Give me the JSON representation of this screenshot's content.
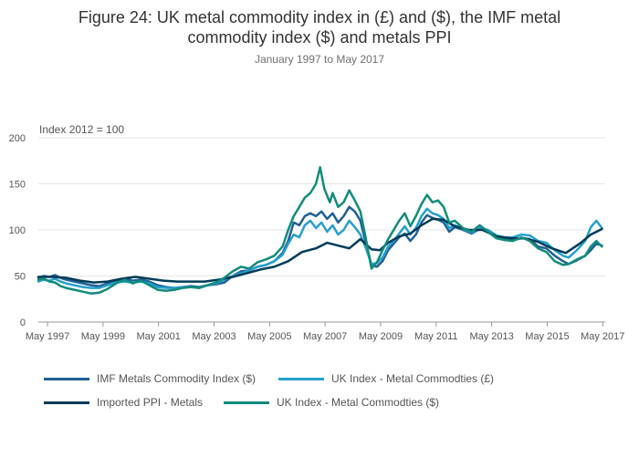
{
  "chart_data": {
    "type": "line",
    "title_line1": "Figure 24: UK metal commodity index in (£) and ($), the IMF metal",
    "title_line2": "commodity index ($) and metals PPI",
    "subtitle": "January 1997 to May 2017",
    "ylabel": "Index 2012 = 100",
    "ylim": [
      0,
      200
    ],
    "yticks": [
      0,
      50,
      100,
      150,
      200
    ],
    "xlim": [
      1997.0,
      2017.42
    ],
    "xticks": [
      {
        "value": 1997.33,
        "label": "May 1997"
      },
      {
        "value": 1999.33,
        "label": "May 1999"
      },
      {
        "value": 2001.33,
        "label": "May 2001"
      },
      {
        "value": 2003.33,
        "label": "May 2003"
      },
      {
        "value": 2005.33,
        "label": "May 2005"
      },
      {
        "value": 2007.33,
        "label": "May 2007"
      },
      {
        "value": 2009.33,
        "label": "May 2009"
      },
      {
        "value": 2011.33,
        "label": "May 2011"
      },
      {
        "value": 2013.33,
        "label": "May 2013"
      },
      {
        "value": 2015.33,
        "label": "May 2015"
      },
      {
        "value": 2017.33,
        "label": "May 2017"
      }
    ],
    "series": [
      {
        "name": "IMF Metals Commodity Index ($)",
        "color": "#206095",
        "points": [
          [
            1997.0,
            48
          ],
          [
            1997.2,
            50
          ],
          [
            1997.4,
            49
          ],
          [
            1997.6,
            51
          ],
          [
            1997.8,
            48
          ],
          [
            1998.0,
            46
          ],
          [
            1998.3,
            44
          ],
          [
            1998.6,
            42
          ],
          [
            1998.9,
            40
          ],
          [
            1999.2,
            39
          ],
          [
            1999.5,
            42
          ],
          [
            1999.8,
            45
          ],
          [
            2000.1,
            47
          ],
          [
            2000.4,
            45
          ],
          [
            2000.7,
            46
          ],
          [
            2001.0,
            44
          ],
          [
            2001.3,
            40
          ],
          [
            2001.6,
            38
          ],
          [
            2001.9,
            37
          ],
          [
            2002.2,
            38
          ],
          [
            2002.5,
            39
          ],
          [
            2002.8,
            38
          ],
          [
            2003.1,
            40
          ],
          [
            2003.4,
            41
          ],
          [
            2003.7,
            43
          ],
          [
            2004.0,
            50
          ],
          [
            2004.3,
            55
          ],
          [
            2004.6,
            56
          ],
          [
            2004.9,
            60
          ],
          [
            2005.2,
            62
          ],
          [
            2005.5,
            66
          ],
          [
            2005.8,
            75
          ],
          [
            2006.0,
            88
          ],
          [
            2006.2,
            108
          ],
          [
            2006.4,
            105
          ],
          [
            2006.6,
            115
          ],
          [
            2006.8,
            118
          ],
          [
            2007.0,
            115
          ],
          [
            2007.2,
            120
          ],
          [
            2007.4,
            112
          ],
          [
            2007.6,
            118
          ],
          [
            2007.8,
            108
          ],
          [
            2008.0,
            115
          ],
          [
            2008.2,
            125
          ],
          [
            2008.4,
            120
          ],
          [
            2008.6,
            110
          ],
          [
            2008.8,
            85
          ],
          [
            2009.0,
            62
          ],
          [
            2009.2,
            60
          ],
          [
            2009.4,
            66
          ],
          [
            2009.6,
            78
          ],
          [
            2009.8,
            85
          ],
          [
            2010.0,
            92
          ],
          [
            2010.2,
            96
          ],
          [
            2010.4,
            88
          ],
          [
            2010.6,
            95
          ],
          [
            2010.8,
            108
          ],
          [
            2011.0,
            116
          ],
          [
            2011.2,
            113
          ],
          [
            2011.4,
            111
          ],
          [
            2011.6,
            108
          ],
          [
            2011.8,
            98
          ],
          [
            2012.0,
            103
          ],
          [
            2012.3,
            100
          ],
          [
            2012.6,
            96
          ],
          [
            2012.9,
            101
          ],
          [
            2013.2,
            98
          ],
          [
            2013.5,
            91
          ],
          [
            2013.8,
            90
          ],
          [
            2014.1,
            89
          ],
          [
            2014.4,
            91
          ],
          [
            2014.7,
            90
          ],
          [
            2015.0,
            82
          ],
          [
            2015.3,
            80
          ],
          [
            2015.6,
            72
          ],
          [
            2015.9,
            66
          ],
          [
            2016.1,
            63
          ],
          [
            2016.4,
            67
          ],
          [
            2016.7,
            72
          ],
          [
            2016.9,
            78
          ],
          [
            2017.1,
            85
          ],
          [
            2017.3,
            83
          ]
        ]
      },
      {
        "name": "UK Index - Metal Commodties (£)",
        "color": "#27a0cc",
        "points": [
          [
            1997.0,
            44
          ],
          [
            1997.2,
            46
          ],
          [
            1997.4,
            45
          ],
          [
            1997.6,
            47
          ],
          [
            1997.8,
            44
          ],
          [
            1998.0,
            42
          ],
          [
            1998.3,
            40
          ],
          [
            1998.6,
            38
          ],
          [
            1998.9,
            37
          ],
          [
            1999.2,
            37
          ],
          [
            1999.5,
            40
          ],
          [
            1999.8,
            43
          ],
          [
            2000.1,
            44
          ],
          [
            2000.4,
            43
          ],
          [
            2000.7,
            44
          ],
          [
            2001.0,
            42
          ],
          [
            2001.3,
            38
          ],
          [
            2001.6,
            37
          ],
          [
            2001.9,
            37
          ],
          [
            2002.2,
            38
          ],
          [
            2002.5,
            38
          ],
          [
            2002.8,
            37
          ],
          [
            2003.1,
            40
          ],
          [
            2003.4,
            42
          ],
          [
            2003.7,
            46
          ],
          [
            2004.0,
            50
          ],
          [
            2004.3,
            53
          ],
          [
            2004.6,
            56
          ],
          [
            2004.9,
            60
          ],
          [
            2005.2,
            62
          ],
          [
            2005.5,
            66
          ],
          [
            2005.8,
            73
          ],
          [
            2006.0,
            85
          ],
          [
            2006.2,
            95
          ],
          [
            2006.4,
            92
          ],
          [
            2006.6,
            105
          ],
          [
            2006.8,
            110
          ],
          [
            2007.0,
            102
          ],
          [
            2007.2,
            108
          ],
          [
            2007.4,
            98
          ],
          [
            2007.6,
            105
          ],
          [
            2007.8,
            95
          ],
          [
            2008.0,
            100
          ],
          [
            2008.2,
            110
          ],
          [
            2008.4,
            103
          ],
          [
            2008.6,
            95
          ],
          [
            2008.8,
            80
          ],
          [
            2009.0,
            63
          ],
          [
            2009.2,
            64
          ],
          [
            2009.4,
            70
          ],
          [
            2009.6,
            82
          ],
          [
            2009.8,
            88
          ],
          [
            2010.0,
            96
          ],
          [
            2010.2,
            104
          ],
          [
            2010.4,
            95
          ],
          [
            2010.6,
            102
          ],
          [
            2010.8,
            115
          ],
          [
            2011.0,
            123
          ],
          [
            2011.2,
            118
          ],
          [
            2011.4,
            116
          ],
          [
            2011.6,
            112
          ],
          [
            2011.8,
            102
          ],
          [
            2012.0,
            105
          ],
          [
            2012.3,
            101
          ],
          [
            2012.6,
            97
          ],
          [
            2012.9,
            102
          ],
          [
            2013.2,
            100
          ],
          [
            2013.5,
            94
          ],
          [
            2013.8,
            92
          ],
          [
            2014.1,
            92
          ],
          [
            2014.4,
            95
          ],
          [
            2014.7,
            94
          ],
          [
            2015.0,
            88
          ],
          [
            2015.3,
            86
          ],
          [
            2015.6,
            78
          ],
          [
            2015.9,
            72
          ],
          [
            2016.1,
            70
          ],
          [
            2016.4,
            78
          ],
          [
            2016.7,
            88
          ],
          [
            2016.9,
            103
          ],
          [
            2017.1,
            110
          ],
          [
            2017.3,
            102
          ]
        ]
      },
      {
        "name": "Imported PPI - Metals",
        "color": "#003c57",
        "points": [
          [
            1997.0,
            49
          ],
          [
            1997.5,
            49
          ],
          [
            1998.0,
            48
          ],
          [
            1998.5,
            45
          ],
          [
            1999.0,
            43
          ],
          [
            1999.5,
            44
          ],
          [
            2000.0,
            47
          ],
          [
            2000.5,
            49
          ],
          [
            2001.0,
            47
          ],
          [
            2001.5,
            45
          ],
          [
            2002.0,
            44
          ],
          [
            2002.5,
            44
          ],
          [
            2003.0,
            44
          ],
          [
            2003.5,
            46
          ],
          [
            2004.0,
            49
          ],
          [
            2004.5,
            53
          ],
          [
            2005.0,
            57
          ],
          [
            2005.5,
            60
          ],
          [
            2006.0,
            66
          ],
          [
            2006.5,
            76
          ],
          [
            2007.0,
            80
          ],
          [
            2007.4,
            86
          ],
          [
            2007.8,
            83
          ],
          [
            2008.2,
            80
          ],
          [
            2008.6,
            90
          ],
          [
            2009.0,
            79
          ],
          [
            2009.3,
            78
          ],
          [
            2009.6,
            86
          ],
          [
            2010.0,
            93
          ],
          [
            2010.4,
            96
          ],
          [
            2010.8,
            105
          ],
          [
            2011.2,
            112
          ],
          [
            2011.6,
            111
          ],
          [
            2012.0,
            104
          ],
          [
            2012.5,
            100
          ],
          [
            2013.0,
            100
          ],
          [
            2013.5,
            93
          ],
          [
            2014.0,
            91
          ],
          [
            2014.5,
            91
          ],
          [
            2015.0,
            87
          ],
          [
            2015.5,
            80
          ],
          [
            2016.0,
            75
          ],
          [
            2016.5,
            85
          ],
          [
            2016.9,
            95
          ],
          [
            2017.3,
            101
          ]
        ]
      },
      {
        "name": "UK Index - Metal Commodties ($)",
        "color": "#118c7b",
        "points": [
          [
            1997.0,
            46
          ],
          [
            1997.2,
            47
          ],
          [
            1997.4,
            44
          ],
          [
            1997.6,
            43
          ],
          [
            1997.8,
            39
          ],
          [
            1998.0,
            37
          ],
          [
            1998.3,
            35
          ],
          [
            1998.6,
            33
          ],
          [
            1998.9,
            31
          ],
          [
            1999.2,
            32
          ],
          [
            1999.5,
            36
          ],
          [
            1999.8,
            42
          ],
          [
            2000.1,
            46
          ],
          [
            2000.4,
            42
          ],
          [
            2000.7,
            45
          ],
          [
            2001.0,
            40
          ],
          [
            2001.3,
            35
          ],
          [
            2001.6,
            34
          ],
          [
            2001.9,
            35
          ],
          [
            2002.2,
            37
          ],
          [
            2002.5,
            38
          ],
          [
            2002.8,
            37
          ],
          [
            2003.1,
            40
          ],
          [
            2003.4,
            43
          ],
          [
            2003.7,
            48
          ],
          [
            2004.0,
            55
          ],
          [
            2004.3,
            60
          ],
          [
            2004.6,
            58
          ],
          [
            2004.9,
            65
          ],
          [
            2005.2,
            68
          ],
          [
            2005.5,
            72
          ],
          [
            2005.8,
            82
          ],
          [
            2006.0,
            100
          ],
          [
            2006.2,
            115
          ],
          [
            2006.4,
            125
          ],
          [
            2006.6,
            135
          ],
          [
            2006.8,
            140
          ],
          [
            2007.0,
            150
          ],
          [
            2007.15,
            168
          ],
          [
            2007.3,
            145
          ],
          [
            2007.5,
            130
          ],
          [
            2007.6,
            140
          ],
          [
            2007.8,
            125
          ],
          [
            2008.0,
            130
          ],
          [
            2008.2,
            143
          ],
          [
            2008.4,
            132
          ],
          [
            2008.6,
            120
          ],
          [
            2008.8,
            90
          ],
          [
            2009.0,
            58
          ],
          [
            2009.2,
            65
          ],
          [
            2009.4,
            78
          ],
          [
            2009.6,
            90
          ],
          [
            2009.8,
            100
          ],
          [
            2010.0,
            110
          ],
          [
            2010.2,
            118
          ],
          [
            2010.4,
            104
          ],
          [
            2010.6,
            115
          ],
          [
            2010.8,
            128
          ],
          [
            2011.0,
            138
          ],
          [
            2011.2,
            130
          ],
          [
            2011.4,
            132
          ],
          [
            2011.6,
            125
          ],
          [
            2011.8,
            108
          ],
          [
            2012.0,
            110
          ],
          [
            2012.3,
            102
          ],
          [
            2012.6,
            98
          ],
          [
            2012.9,
            105
          ],
          [
            2013.2,
            98
          ],
          [
            2013.5,
            91
          ],
          [
            2013.8,
            89
          ],
          [
            2014.1,
            88
          ],
          [
            2014.4,
            92
          ],
          [
            2014.7,
            88
          ],
          [
            2015.0,
            80
          ],
          [
            2015.3,
            76
          ],
          [
            2015.6,
            66
          ],
          [
            2015.9,
            62
          ],
          [
            2016.1,
            63
          ],
          [
            2016.4,
            68
          ],
          [
            2016.7,
            72
          ],
          [
            2016.9,
            82
          ],
          [
            2017.1,
            88
          ],
          [
            2017.3,
            82
          ]
        ]
      }
    ],
    "legend": [
      {
        "label": "IMF Metals Commodity Index ($)",
        "color": "#206095"
      },
      {
        "label": "UK Index - Metal Commodties (£)",
        "color": "#27a0cc"
      },
      {
        "label": "Imported PPI - Metals",
        "color": "#003c57"
      },
      {
        "label": "UK Index - Metal Commodties ($)",
        "color": "#118c7b"
      }
    ]
  }
}
